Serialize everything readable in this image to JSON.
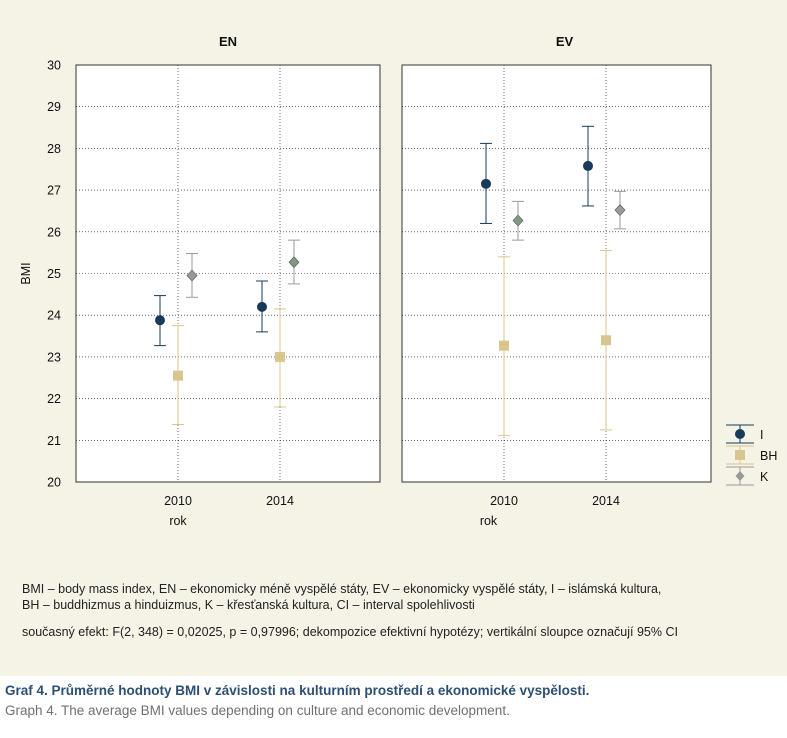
{
  "chart_data": {
    "type": "scatter",
    "ylabel": "BMI",
    "xlabel": "rok",
    "ylim": [
      20,
      30
    ],
    "yticks": [
      "20",
      "21",
      "22",
      "23",
      "24",
      "25",
      "26",
      "27",
      "28",
      "29",
      "30"
    ],
    "xticks": [
      "2010",
      "2014"
    ],
    "grid": true,
    "legend_position": "right",
    "panels": [
      {
        "title": "EN",
        "series": [
          {
            "name": "I",
            "values": [
              {
                "x": "2010",
                "y": 23.88,
                "lo": 23.27,
                "hi": 24.47
              },
              {
                "x": "2014",
                "y": 24.2,
                "lo": 23.6,
                "hi": 24.82
              }
            ]
          },
          {
            "name": "BH",
            "values": [
              {
                "x": "2010",
                "y": 22.55,
                "lo": 21.38,
                "hi": 23.75
              },
              {
                "x": "2014",
                "y": 23.0,
                "lo": 21.8,
                "hi": 24.15
              }
            ]
          },
          {
            "name": "K",
            "values": [
              {
                "x": "2010",
                "y": 24.95,
                "lo": 24.43,
                "hi": 25.48
              },
              {
                "x": "2014",
                "y": 25.27,
                "lo": 24.75,
                "hi": 25.8
              }
            ]
          }
        ]
      },
      {
        "title": "EV",
        "series": [
          {
            "name": "I",
            "values": [
              {
                "x": "2010",
                "y": 27.15,
                "lo": 26.2,
                "hi": 28.12
              },
              {
                "x": "2014",
                "y": 27.58,
                "lo": 26.62,
                "hi": 28.53
              }
            ]
          },
          {
            "name": "BH",
            "values": [
              {
                "x": "2010",
                "y": 23.27,
                "lo": 21.12,
                "hi": 25.4
              },
              {
                "x": "2014",
                "y": 23.4,
                "lo": 21.25,
                "hi": 25.55
              }
            ]
          },
          {
            "name": "K",
            "values": [
              {
                "x": "2010",
                "y": 26.27,
                "lo": 25.8,
                "hi": 26.73
              },
              {
                "x": "2014",
                "y": 26.52,
                "lo": 26.07,
                "hi": 26.97
              }
            ]
          }
        ]
      }
    ],
    "colors": {
      "I": "#17395a",
      "BH": "#d9c68e",
      "K_EN": "#9a9a9a",
      "K_EV": "#9a9a9a",
      "K_EN_2014": "#7f9a80",
      "K_EV_2010": "#7f9a80"
    }
  },
  "notes": {
    "line1": "BMI – body mass index, EN – ekonomicky méně vyspělé státy, EV – ekonomicky vyspělé státy, I – islámská kultura,",
    "line2": "BH – buddhizmus a hinduizmus, K – křesťanská kultura, CI – interval spolehlivosti",
    "line3": "současný efekt: F(2, 348) = 0,02025, p = 0,97996; dekompozice efektivní hypotézy; vertikální sloupce označují 95% CI"
  },
  "caption": {
    "cz": "Graf 4. Průměrné hodnoty BMI v závislosti na kulturním prostředí a ekonomické vyspělosti.",
    "en": "Graph 4. The average BMI values depending on culture and economic development."
  }
}
